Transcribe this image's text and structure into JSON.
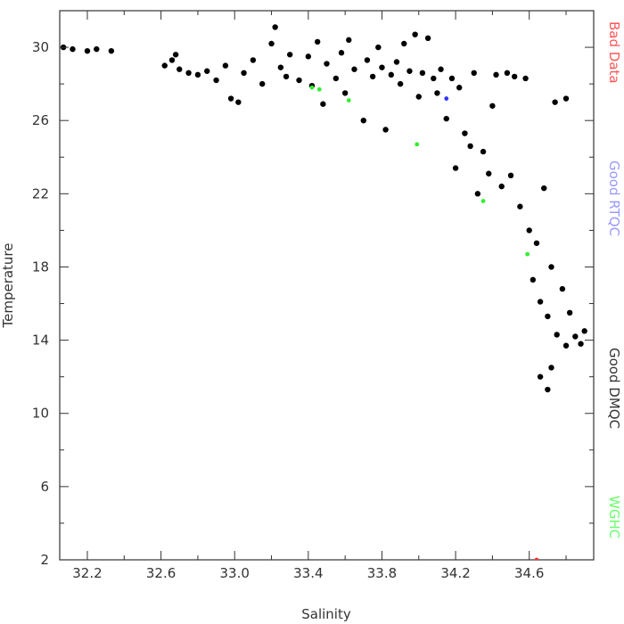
{
  "chart_data": {
    "type": "scatter",
    "xlabel": "Salinity",
    "ylabel": "Temperature",
    "xlim": [
      32.05,
      34.95
    ],
    "ylim": [
      2,
      32
    ],
    "x_ticks": [
      32.2,
      32.6,
      33.0,
      33.4,
      33.8,
      34.2,
      34.6
    ],
    "x_tick_labels": [
      "32.2",
      "32.6",
      "33.0",
      "33.4",
      "33.8",
      "34.2",
      "34.6"
    ],
    "y_ticks": [
      2,
      6,
      10,
      14,
      18,
      22,
      26,
      30
    ],
    "y_tick_labels": [
      "2",
      "6",
      "10",
      "14",
      "18",
      "22",
      "26",
      "30"
    ],
    "grid": false,
    "legend": [
      {
        "label": "Bad Data",
        "color": "#ff5555"
      },
      {
        "label": "Good RTQC",
        "color": "#9999ff"
      },
      {
        "label": "Good DMQC",
        "color": "#333333"
      },
      {
        "label": "WGHC",
        "color": "#66ff66"
      }
    ],
    "series": [
      {
        "name": "Good DMQC",
        "color": "#000000",
        "points": [
          [
            32.07,
            30.0
          ],
          [
            32.12,
            29.9
          ],
          [
            32.2,
            29.8
          ],
          [
            32.25,
            29.9
          ],
          [
            32.33,
            29.8
          ],
          [
            32.62,
            29.0
          ],
          [
            32.66,
            29.3
          ],
          [
            32.68,
            29.6
          ],
          [
            32.7,
            28.8
          ],
          [
            32.75,
            28.6
          ],
          [
            32.8,
            28.5
          ],
          [
            32.85,
            28.7
          ],
          [
            32.9,
            28.2
          ],
          [
            32.95,
            29.0
          ],
          [
            32.98,
            27.2
          ],
          [
            33.02,
            27.0
          ],
          [
            33.05,
            28.6
          ],
          [
            33.1,
            29.3
          ],
          [
            33.15,
            28.0
          ],
          [
            33.2,
            30.2
          ],
          [
            33.22,
            31.1
          ],
          [
            33.25,
            28.9
          ],
          [
            33.28,
            28.4
          ],
          [
            33.3,
            29.6
          ],
          [
            33.35,
            28.2
          ],
          [
            33.4,
            29.5
          ],
          [
            33.42,
            27.9
          ],
          [
            33.45,
            30.3
          ],
          [
            33.48,
            26.9
          ],
          [
            33.5,
            29.1
          ],
          [
            33.55,
            28.3
          ],
          [
            33.58,
            29.7
          ],
          [
            33.6,
            27.5
          ],
          [
            33.62,
            30.4
          ],
          [
            33.65,
            28.8
          ],
          [
            33.7,
            26.0
          ],
          [
            33.72,
            29.3
          ],
          [
            33.75,
            28.4
          ],
          [
            33.78,
            30.0
          ],
          [
            33.8,
            28.9
          ],
          [
            33.82,
            25.5
          ],
          [
            33.85,
            28.5
          ],
          [
            33.88,
            29.2
          ],
          [
            33.9,
            28.0
          ],
          [
            33.92,
            30.2
          ],
          [
            33.95,
            28.7
          ],
          [
            33.98,
            30.7
          ],
          [
            34.0,
            27.3
          ],
          [
            34.02,
            28.6
          ],
          [
            34.05,
            30.5
          ],
          [
            34.08,
            28.3
          ],
          [
            34.1,
            27.5
          ],
          [
            34.12,
            28.8
          ],
          [
            34.15,
            26.1
          ],
          [
            34.18,
            28.3
          ],
          [
            34.2,
            23.4
          ],
          [
            34.22,
            27.8
          ],
          [
            34.25,
            25.3
          ],
          [
            34.28,
            24.6
          ],
          [
            34.3,
            28.6
          ],
          [
            34.32,
            22.0
          ],
          [
            34.35,
            24.3
          ],
          [
            34.38,
            23.1
          ],
          [
            34.4,
            26.8
          ],
          [
            34.42,
            28.5
          ],
          [
            34.45,
            22.4
          ],
          [
            34.48,
            28.6
          ],
          [
            34.5,
            23.0
          ],
          [
            34.52,
            28.4
          ],
          [
            34.55,
            21.3
          ],
          [
            34.58,
            28.3
          ],
          [
            34.6,
            20.0
          ],
          [
            34.62,
            17.3
          ],
          [
            34.64,
            19.3
          ],
          [
            34.66,
            16.1
          ],
          [
            34.68,
            22.3
          ],
          [
            34.7,
            15.3
          ],
          [
            34.72,
            18.0
          ],
          [
            34.75,
            14.3
          ],
          [
            34.78,
            16.8
          ],
          [
            34.8,
            13.7
          ],
          [
            34.82,
            15.5
          ],
          [
            34.85,
            14.2
          ],
          [
            34.88,
            13.8
          ],
          [
            34.9,
            14.5
          ],
          [
            34.72,
            12.5
          ],
          [
            34.7,
            11.3
          ],
          [
            34.66,
            12.0
          ],
          [
            34.74,
            27.0
          ],
          [
            34.8,
            27.2
          ]
        ]
      },
      {
        "name": "Good RTQC",
        "color": "#3333ff",
        "points": [
          [
            34.15,
            27.2
          ]
        ]
      },
      {
        "name": "WGHC",
        "color": "#33ee33",
        "points": [
          [
            33.42,
            27.8
          ],
          [
            33.46,
            27.7
          ],
          [
            33.62,
            27.1
          ],
          [
            33.99,
            24.7
          ],
          [
            34.35,
            21.6
          ],
          [
            34.59,
            18.7
          ]
        ]
      },
      {
        "name": "Bad Data",
        "color": "#ff3333",
        "points": [
          [
            34.64,
            2.0
          ]
        ]
      }
    ]
  }
}
